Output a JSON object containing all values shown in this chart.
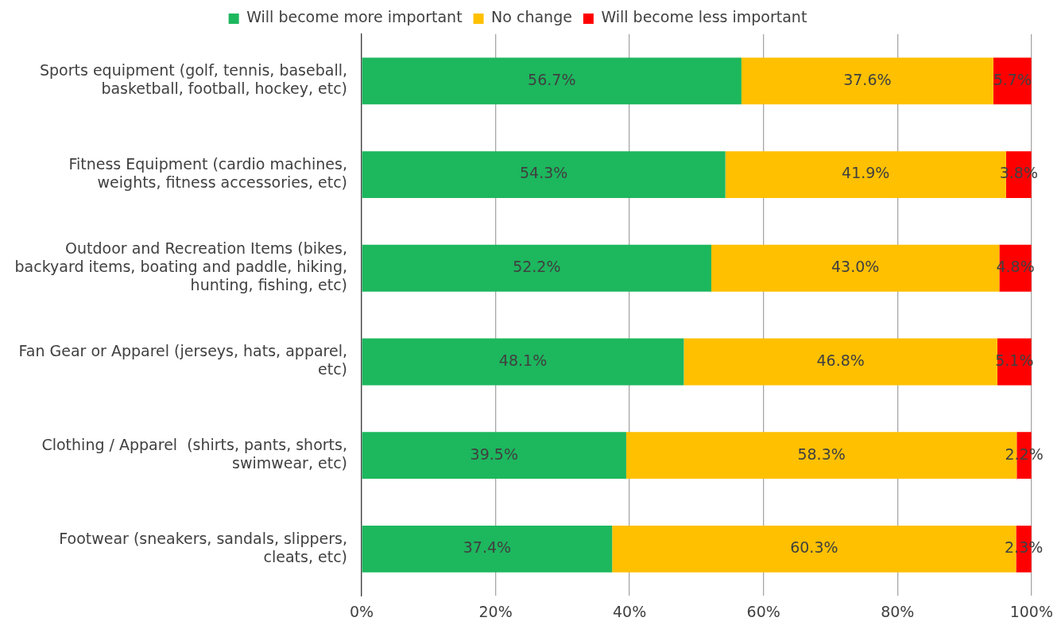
{
  "chart_data": {
    "type": "bar",
    "orientation": "horizontal",
    "stacked": true,
    "categories": [
      "Sports equipment (golf, tennis, baseball, basketball, football, hockey, etc)",
      "Fitness Equipment (cardio machines, weights, fitness accessories, etc)",
      "Outdoor and Recreation Items (bikes, backyard items, boating and paddle, hiking, hunting, fishing, etc)",
      "Fan Gear or Apparel (jerseys, hats, apparel, etc)",
      "Clothing / Apparel  (shirts, pants, shorts, swimwear, etc)",
      "Footwear (sneakers, sandals, slippers, cleats, etc)"
    ],
    "series": [
      {
        "name": "Will become more important",
        "color": "#1db75e",
        "values": [
          56.7,
          54.3,
          52.2,
          48.1,
          39.5,
          37.4
        ],
        "value_labels": [
          "56.7%",
          "54.3%",
          "52.2%",
          "48.1%",
          "39.5%",
          "37.4%"
        ]
      },
      {
        "name": "No change",
        "color": "#ffc000",
        "values": [
          37.6,
          41.9,
          43.0,
          46.8,
          58.3,
          60.3
        ],
        "value_labels": [
          "37.6%",
          "41.9%",
          "43.0%",
          "46.8%",
          "58.3%",
          "60.3%"
        ]
      },
      {
        "name": "Will become less important",
        "color": "#ff0000",
        "values": [
          5.7,
          3.8,
          4.8,
          5.1,
          2.2,
          2.3
        ],
        "value_labels": [
          "5.7%",
          "3.8%",
          "4.8%",
          "5.1%",
          "2.2%",
          "2.3%"
        ]
      }
    ],
    "xlim": [
      0,
      100
    ],
    "xticks": [
      {
        "value": 0,
        "label": "0%"
      },
      {
        "value": 20,
        "label": "20%"
      },
      {
        "value": 40,
        "label": "40%"
      },
      {
        "value": 60,
        "label": "60%"
      },
      {
        "value": 80,
        "label": "80%"
      },
      {
        "value": 100,
        "label": "100%"
      }
    ],
    "grid": "x",
    "legend": "top"
  }
}
